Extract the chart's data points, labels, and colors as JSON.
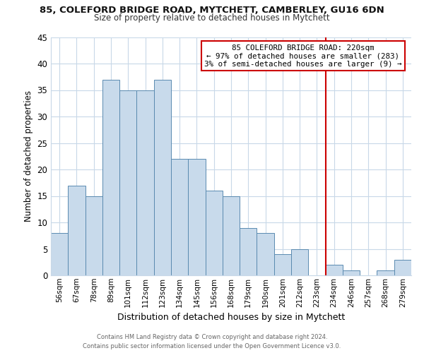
{
  "title_line1": "85, COLEFORD BRIDGE ROAD, MYTCHETT, CAMBERLEY, GU16 6DN",
  "title_line2": "Size of property relative to detached houses in Mytchett",
  "xlabel": "Distribution of detached houses by size in Mytchett",
  "ylabel": "Number of detached properties",
  "bar_labels": [
    "56sqm",
    "67sqm",
    "78sqm",
    "89sqm",
    "101sqm",
    "112sqm",
    "123sqm",
    "134sqm",
    "145sqm",
    "156sqm",
    "168sqm",
    "179sqm",
    "190sqm",
    "201sqm",
    "212sqm",
    "223sqm",
    "234sqm",
    "246sqm",
    "257sqm",
    "268sqm",
    "279sqm"
  ],
  "bar_values": [
    8,
    17,
    15,
    37,
    35,
    35,
    37,
    22,
    22,
    16,
    15,
    9,
    8,
    4,
    5,
    0,
    2,
    1,
    0,
    1,
    3
  ],
  "bar_color": "#c8daeb",
  "bar_edge_color": "#5a8ab0",
  "reference_line_x": 15.5,
  "reference_line_color": "#cc0000",
  "ylim": [
    0,
    45
  ],
  "yticks": [
    0,
    5,
    10,
    15,
    20,
    25,
    30,
    35,
    40,
    45
  ],
  "annotation_title": "85 COLEFORD BRIDGE ROAD: 220sqm",
  "annotation_line1": "← 97% of detached houses are smaller (283)",
  "annotation_line2": "3% of semi-detached houses are larger (9) →",
  "annotation_box_color": "#ffffff",
  "annotation_box_edge": "#cc0000",
  "footer_line1": "Contains HM Land Registry data © Crown copyright and database right 2024.",
  "footer_line2": "Contains public sector information licensed under the Open Government Licence v3.0.",
  "bg_color": "#ffffff",
  "grid_color": "#c8d8e8"
}
